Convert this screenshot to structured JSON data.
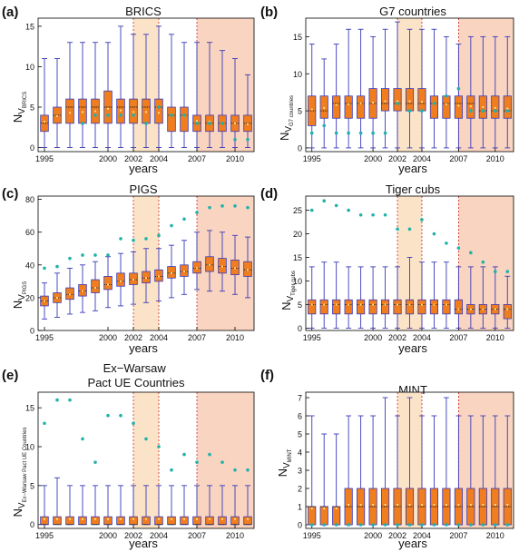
{
  "colors": {
    "box_fill": "#f07d1e",
    "box_edge": "#3a3ab8",
    "whisker": "#3a3ab8",
    "median": "#222222",
    "mean_marker": "#ffe08a",
    "outlier": "#20b2aa",
    "period2_shade": "#fbe3c8",
    "period3_shade": "#f9d4c0",
    "period_line": "#cc2222"
  },
  "panels": [
    {
      "id": "a",
      "panel_label": "(a)",
      "title": "BRICS",
      "ylabel_main": "N",
      "ylabel_sub": "V",
      "ylabel_subsub": "BRICS",
      "xlabel": "years",
      "xticks": [
        "1995",
        "2000",
        "2002",
        "2004",
        "2007",
        "2010"
      ],
      "yticks": [
        "0",
        "5",
        "10",
        "15"
      ]
    },
    {
      "id": "b",
      "panel_label": "(b)",
      "title": "G7 countries",
      "ylabel_main": "N",
      "ylabel_sub": "V",
      "ylabel_subsub": "G7 countries",
      "xlabel": "years",
      "xticks": [
        "1995",
        "2000",
        "2002",
        "2004",
        "2007",
        "2010"
      ],
      "yticks": [
        "0",
        "5",
        "10",
        "15"
      ]
    },
    {
      "id": "c",
      "panel_label": "(c)",
      "title": "PIGS",
      "ylabel_main": "N",
      "ylabel_sub": "V",
      "ylabel_subsub": "PIGS",
      "xlabel": "years",
      "xticks": [
        "1995",
        "2000",
        "2002",
        "2004",
        "2007",
        "2010"
      ],
      "yticks": [
        "0",
        "20",
        "40",
        "60",
        "80"
      ]
    },
    {
      "id": "d",
      "panel_label": "(d)",
      "title": "Tiger cubs",
      "ylabel_main": "N",
      "ylabel_sub": "V",
      "ylabel_subsub": "Tiger cubs",
      "xlabel": "years",
      "xticks": [
        "1995",
        "2000",
        "2002",
        "2004",
        "2007",
        "2010"
      ],
      "yticks": [
        "0",
        "5",
        "10",
        "15",
        "20",
        "25"
      ]
    },
    {
      "id": "e",
      "panel_label": "(e)",
      "title": "Ex−Warsaw\nPact UE Countries",
      "ylabel_main": "N",
      "ylabel_sub": "V",
      "ylabel_subsub": "Ex−Warsaw Pact UE Countries",
      "xlabel": "years",
      "xticks": [
        "1995",
        "2000",
        "2002",
        "2004",
        "2007",
        "2010"
      ],
      "yticks": [
        "0",
        "5",
        "10",
        "15"
      ]
    },
    {
      "id": "f",
      "panel_label": "(f)",
      "title": "MINT",
      "ylabel_main": "N",
      "ylabel_sub": "V",
      "ylabel_subsub": "MINT",
      "xlabel": "years",
      "xticks": [
        "1995",
        "2000",
        "2002",
        "2004",
        "2007",
        "2010"
      ],
      "yticks": [
        "0",
        "1",
        "2",
        "3",
        "4",
        "5",
        "6",
        "7"
      ]
    }
  ],
  "chart_data": [
    {
      "type": "box",
      "title": "BRICS",
      "xlabel": "years",
      "ylabel": "N_V_BRICS",
      "x": [
        1995,
        1996,
        1997,
        1998,
        1999,
        2000,
        2001,
        2002,
        2003,
        2004,
        2005,
        2006,
        2007,
        2008,
        2009,
        2010,
        2011
      ],
      "ylim": [
        -0.5,
        16
      ],
      "shaded_periods": [
        [
          2002,
          2004
        ],
        [
          2007,
          2011
        ]
      ],
      "whisker_low": [
        0,
        0,
        0,
        0,
        0,
        0,
        0,
        0,
        0,
        0,
        0,
        0,
        0,
        0,
        0,
        0,
        0
      ],
      "q1": [
        2,
        3,
        3,
        3,
        3,
        3,
        3,
        3,
        3,
        3,
        2,
        2,
        2,
        2,
        2,
        2,
        2
      ],
      "median": [
        3,
        4,
        5,
        5,
        5,
        5,
        5,
        5,
        5,
        5,
        4,
        4,
        3,
        3,
        3,
        3,
        3
      ],
      "q3": [
        4,
        5,
        6,
        6,
        6,
        7,
        6,
        6,
        6,
        6,
        5,
        5,
        4,
        4,
        4,
        4,
        4
      ],
      "whisker_high": [
        11,
        11,
        13,
        13,
        13,
        13,
        15,
        14,
        14,
        15,
        14,
        13,
        13,
        13,
        12,
        11,
        9
      ],
      "mean": [
        3.2,
        3.9,
        4.3,
        4.4,
        4.5,
        4.8,
        4.6,
        4.4,
        4.4,
        4.3,
        4.0,
        3.9,
        3.3,
        3.2,
        3.1,
        3.0,
        2.9
      ],
      "outliers": [
        [
          3,
          3
        ],
        [
          4,
          4
        ],
        [
          5,
          4
        ],
        [
          6,
          4
        ],
        [
          7,
          4
        ],
        [
          8,
          3
        ],
        [
          9,
          5
        ],
        [
          10,
          4
        ],
        [
          11,
          4
        ],
        [
          12,
          3
        ],
        [
          13,
          3
        ],
        [
          14,
          3
        ],
        [
          15,
          1
        ],
        [
          16,
          1
        ]
      ]
    },
    {
      "type": "box",
      "title": "G7 countries",
      "xlabel": "years",
      "ylabel": "N_V_G7 countries",
      "x": [
        1995,
        1996,
        1997,
        1998,
        1999,
        2000,
        2001,
        2002,
        2003,
        2004,
        2005,
        2006,
        2007,
        2008,
        2009,
        2010,
        2011
      ],
      "ylim": [
        -0.5,
        17.5
      ],
      "shaded_periods": [
        [
          2002,
          2004
        ],
        [
          2007,
          2011
        ]
      ],
      "whisker_low": [
        0,
        0,
        0,
        0,
        0,
        0,
        0,
        0,
        0,
        0,
        0,
        0,
        0,
        0,
        0,
        0,
        0
      ],
      "q1": [
        3,
        4,
        4,
        4,
        4,
        4,
        5,
        5,
        5,
        5,
        4,
        4,
        4,
        4,
        4,
        4,
        4
      ],
      "median": [
        5,
        5,
        6,
        6,
        6,
        6,
        6,
        6,
        6,
        6,
        6,
        6,
        6,
        6,
        5,
        5,
        5
      ],
      "q3": [
        7,
        7,
        7,
        7,
        7,
        8,
        8,
        8,
        8,
        8,
        7,
        7,
        7,
        7,
        7,
        7,
        7
      ],
      "whisker_high": [
        14,
        12,
        14,
        16,
        16,
        15,
        16,
        17,
        16,
        16,
        16,
        15,
        14,
        15,
        15,
        15,
        15
      ],
      "mean": [
        5.2,
        5.4,
        5.8,
        5.9,
        6.0,
        6.1,
        6.3,
        6.3,
        6.3,
        6.2,
        6.0,
        5.9,
        5.7,
        5.6,
        5.5,
        5.4,
        5.3
      ],
      "outliers": [
        [
          0,
          2
        ],
        [
          1,
          3
        ],
        [
          2,
          2
        ],
        [
          3,
          2
        ],
        [
          4,
          2
        ],
        [
          5,
          2
        ],
        [
          6,
          2
        ],
        [
          7,
          6
        ],
        [
          8,
          5
        ],
        [
          9,
          5
        ],
        [
          10,
          6
        ],
        [
          11,
          7
        ],
        [
          12,
          8
        ],
        [
          13,
          5
        ],
        [
          14,
          5
        ],
        [
          15,
          5
        ],
        [
          16,
          5
        ]
      ]
    },
    {
      "type": "box",
      "title": "PIGS",
      "xlabel": "years",
      "ylabel": "N_V_PIGS",
      "x": [
        1995,
        1996,
        1997,
        1998,
        1999,
        2000,
        2001,
        2002,
        2003,
        2004,
        2005,
        2006,
        2007,
        2008,
        2009,
        2010,
        2011
      ],
      "ylim": [
        0,
        82
      ],
      "shaded_periods": [
        [
          2002,
          2004
        ],
        [
          2007,
          2011
        ]
      ],
      "whisker_low": [
        7,
        8,
        10,
        11,
        12,
        14,
        15,
        16,
        17,
        18,
        20,
        22,
        25,
        24,
        24,
        22,
        20
      ],
      "q1": [
        15,
        17,
        19,
        21,
        23,
        25,
        27,
        28,
        29,
        30,
        32,
        33,
        35,
        36,
        35,
        34,
        33
      ],
      "median": [
        18,
        20,
        22,
        24,
        26,
        28,
        30,
        31,
        32,
        33,
        35,
        36,
        38,
        40,
        39,
        38,
        37
      ],
      "q3": [
        21,
        23,
        26,
        28,
        31,
        33,
        35,
        35,
        36,
        37,
        39,
        40,
        42,
        45,
        44,
        43,
        42
      ],
      "whisker_high": [
        29,
        35,
        38,
        40,
        42,
        45,
        47,
        48,
        50,
        50,
        52,
        55,
        60,
        61,
        60,
        58,
        57
      ],
      "mean": [
        18,
        20,
        22,
        24,
        26,
        28,
        30,
        31,
        32,
        33,
        35,
        36,
        38,
        40,
        39,
        38,
        37
      ],
      "outliers": [
        [
          0,
          38
        ],
        [
          1,
          39
        ],
        [
          2,
          44
        ],
        [
          3,
          46
        ],
        [
          4,
          46
        ],
        [
          5,
          46
        ],
        [
          6,
          56
        ],
        [
          7,
          55
        ],
        [
          8,
          56
        ],
        [
          9,
          58
        ],
        [
          10,
          64
        ],
        [
          11,
          68
        ],
        [
          12,
          72
        ],
        [
          13,
          75
        ],
        [
          14,
          76
        ],
        [
          15,
          76
        ],
        [
          16,
          75
        ]
      ]
    },
    {
      "type": "box",
      "title": "Tiger cubs",
      "xlabel": "years",
      "ylabel": "N_V_Tiger cubs",
      "x": [
        1995,
        1996,
        1997,
        1998,
        1999,
        2000,
        2001,
        2002,
        2003,
        2004,
        2005,
        2006,
        2007,
        2008,
        2009,
        2010,
        2011
      ],
      "ylim": [
        -0.5,
        28
      ],
      "shaded_periods": [
        [
          2002,
          2004
        ],
        [
          2007,
          2011
        ]
      ],
      "whisker_low": [
        0,
        0,
        0,
        0,
        0,
        0,
        0,
        0,
        0,
        0,
        0,
        0,
        0,
        0,
        0,
        0,
        0
      ],
      "q1": [
        3,
        3,
        3,
        3,
        3,
        3,
        3,
        3,
        3,
        3,
        3,
        3,
        3,
        3,
        3,
        3,
        2
      ],
      "median": [
        5,
        5,
        5,
        5,
        5,
        5,
        5,
        5,
        5,
        5,
        5,
        5,
        4,
        4,
        4,
        4,
        4
      ],
      "q3": [
        6,
        6,
        6,
        6,
        6,
        6,
        6,
        6,
        6,
        6,
        6,
        6,
        6,
        5,
        5,
        5,
        5
      ],
      "whisker_high": [
        13,
        14,
        14,
        13,
        13,
        13,
        13,
        13,
        15,
        14,
        14,
        14,
        13,
        13,
        13,
        13,
        11
      ],
      "mean": [
        5,
        5,
        5,
        5,
        5,
        5,
        5,
        5,
        5,
        5,
        5,
        5,
        4,
        4,
        4,
        4,
        4
      ],
      "outliers": [
        [
          0,
          25
        ],
        [
          1,
          27
        ],
        [
          2,
          26
        ],
        [
          3,
          25
        ],
        [
          4,
          24
        ],
        [
          5,
          24
        ],
        [
          6,
          24
        ],
        [
          7,
          21
        ],
        [
          8,
          21
        ],
        [
          9,
          23
        ],
        [
          10,
          20
        ],
        [
          11,
          18
        ],
        [
          12,
          17
        ],
        [
          13,
          16
        ],
        [
          14,
          14
        ],
        [
          15,
          12
        ],
        [
          16,
          12
        ]
      ]
    },
    {
      "type": "box",
      "title": "Ex−Warsaw Pact UE Countries",
      "xlabel": "years",
      "ylabel": "N_V_Ex−Warsaw Pact UE Countries",
      "x": [
        1995,
        1996,
        1997,
        1998,
        1999,
        2000,
        2001,
        2002,
        2003,
        2004,
        2005,
        2006,
        2007,
        2008,
        2009,
        2010,
        2011
      ],
      "ylim": [
        -0.5,
        17
      ],
      "shaded_periods": [
        [
          2002,
          2004
        ],
        [
          2007,
          2011
        ]
      ],
      "whisker_low": [
        0,
        0,
        0,
        0,
        0,
        0,
        0,
        0,
        0,
        0,
        0,
        0,
        0,
        0,
        0,
        0,
        0
      ],
      "q1": [
        0,
        0,
        0,
        0,
        0,
        0,
        0,
        0,
        0,
        0,
        0,
        0,
        0,
        0,
        0,
        0,
        0
      ],
      "median": [
        0,
        0,
        0,
        0,
        0,
        0,
        0,
        0,
        0,
        0,
        0,
        0,
        0,
        0,
        0,
        0,
        0
      ],
      "q3": [
        1,
        1,
        1,
        1,
        1,
        1,
        1,
        1,
        1,
        1,
        1,
        1,
        1,
        1,
        1,
        1,
        1
      ],
      "whisker_high": [
        5,
        6,
        5,
        5,
        5,
        5,
        5,
        5,
        5,
        5,
        5,
        5,
        5,
        5,
        5,
        5,
        5
      ],
      "mean": [
        0.7,
        0.7,
        0.7,
        0.7,
        0.7,
        0.7,
        0.7,
        0.7,
        0.7,
        0.7,
        0.7,
        0.7,
        0.7,
        0.7,
        0.7,
        0.7,
        0.7
      ],
      "outliers": [
        [
          0,
          13
        ],
        [
          1,
          16
        ],
        [
          2,
          16
        ],
        [
          3,
          11
        ],
        [
          4,
          8
        ],
        [
          5,
          14
        ],
        [
          6,
          14
        ],
        [
          7,
          13
        ],
        [
          8,
          11
        ],
        [
          9,
          10
        ],
        [
          10,
          7
        ],
        [
          11,
          9
        ],
        [
          12,
          8
        ],
        [
          13,
          9
        ],
        [
          14,
          8
        ],
        [
          15,
          7
        ],
        [
          16,
          7
        ]
      ]
    },
    {
      "type": "box",
      "title": "MINT",
      "xlabel": "years",
      "ylabel": "N_V_MINT",
      "x": [
        1995,
        1996,
        1997,
        1998,
        1999,
        2000,
        2001,
        2002,
        2003,
        2004,
        2005,
        2006,
        2007,
        2008,
        2009,
        2010,
        2011
      ],
      "ylim": [
        -0.2,
        7.3
      ],
      "shaded_periods": [
        [
          2002,
          2004
        ],
        [
          2007,
          2011
        ]
      ],
      "whisker_low": [
        0,
        0,
        0,
        0,
        0,
        0,
        0,
        0,
        0,
        0,
        0,
        0,
        0,
        0,
        0,
        0,
        0
      ],
      "q1": [
        0,
        0,
        0,
        0,
        0,
        0,
        0,
        0,
        0,
        0,
        0,
        0,
        0,
        0,
        0,
        0,
        0
      ],
      "median": [
        1,
        1,
        1,
        1,
        1,
        1,
        1,
        1,
        1,
        1,
        1,
        1,
        1,
        1,
        1,
        1,
        1
      ],
      "q3": [
        1,
        1,
        1,
        2,
        2,
        2,
        2,
        2,
        2,
        2,
        2,
        2,
        2,
        2,
        2,
        2,
        2
      ],
      "whisker_high": [
        6,
        5,
        5,
        6,
        6,
        6,
        7,
        6,
        7,
        6,
        6,
        7,
        6,
        6,
        6,
        6,
        6
      ],
      "mean": [
        0.9,
        0.9,
        0.9,
        1.1,
        1.1,
        1.1,
        1.1,
        1.1,
        1.1,
        1.1,
        1.1,
        1.1,
        1.1,
        1.1,
        1.1,
        1.1,
        1.1
      ],
      "outliers": [
        [
          0,
          0
        ],
        [
          1,
          0
        ],
        [
          2,
          0
        ],
        [
          3,
          0
        ],
        [
          4,
          0
        ],
        [
          5,
          0
        ],
        [
          6,
          0
        ],
        [
          7,
          0
        ],
        [
          8,
          0
        ],
        [
          9,
          0
        ],
        [
          10,
          0
        ],
        [
          11,
          0
        ],
        [
          12,
          0
        ],
        [
          13,
          0
        ],
        [
          14,
          0
        ],
        [
          15,
          0
        ],
        [
          16,
          0
        ]
      ]
    }
  ]
}
